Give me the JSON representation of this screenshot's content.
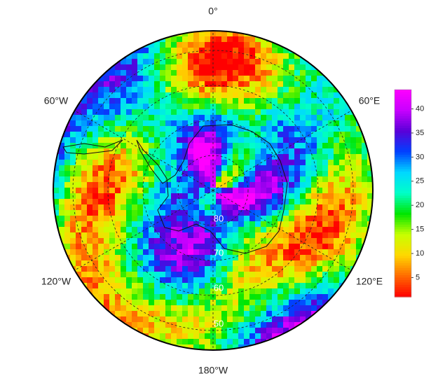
{
  "map": {
    "meridian_labels": [
      "0°",
      "60°W",
      "60°E",
      "120°W",
      "120°E",
      "180°W"
    ],
    "latitude_labels": [
      "80",
      "70",
      "60",
      "50"
    ]
  },
  "colorbar": {
    "lim": [
      1,
      44
    ],
    "ticks": [
      5,
      10,
      15,
      20,
      25,
      30,
      35,
      40
    ],
    "colors": [
      "#ff0000",
      "#ff6a00",
      "#ffd800",
      "#c8ff00",
      "#00e600",
      "#00ffc8",
      "#00d8ff",
      "#0040ff",
      "#5a00d8",
      "#c800ff",
      "#ff00ff"
    ]
  }
}
